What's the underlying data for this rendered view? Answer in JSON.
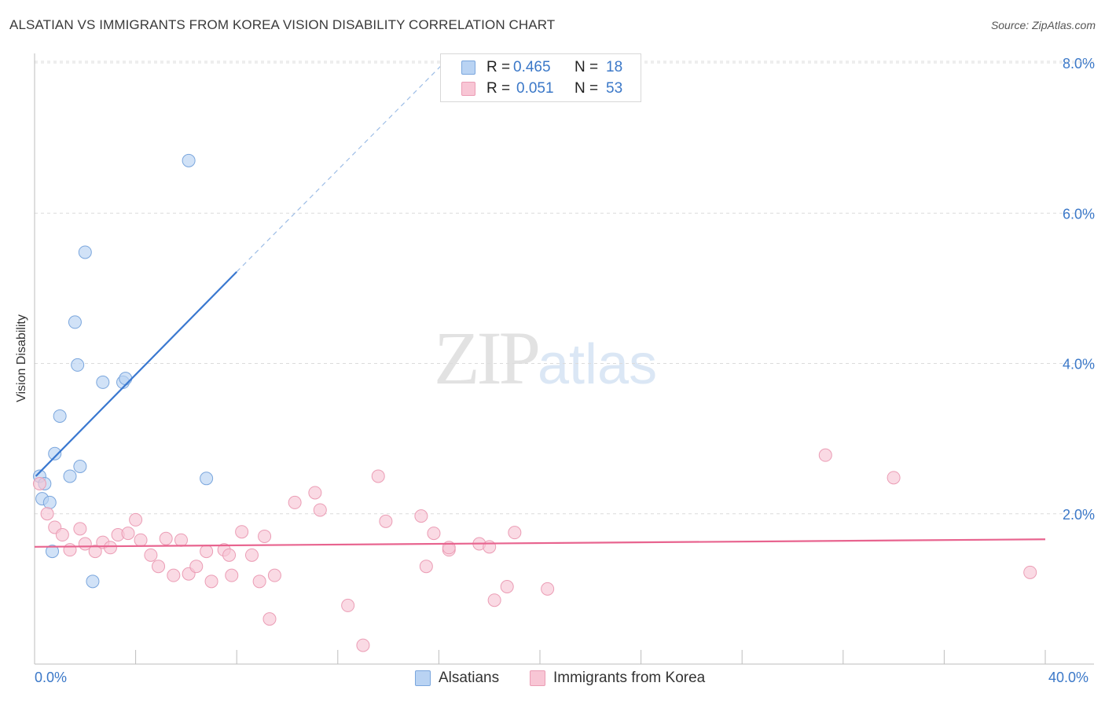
{
  "title": "ALSATIAN VS IMMIGRANTS FROM KOREA VISION DISABILITY CORRELATION CHART",
  "source": "Source: ZipAtlas.com",
  "watermark": {
    "zip": "ZIP",
    "atlas": "atlas"
  },
  "legend": {
    "r_label": "R =",
    "n_label": "N =",
    "rows": [
      {
        "r": "0.465",
        "n": "18"
      },
      {
        "r": "0.051",
        "n": "53"
      }
    ]
  },
  "bottom_legend": [
    "Alsatians",
    "Immigrants from Korea"
  ],
  "colors": {
    "blue_fill": "#b9d3f3",
    "blue_stroke": "#7aa6dd",
    "blue_line": "#3a78d0",
    "pink_fill": "#f8c6d5",
    "pink_stroke": "#eb9db5",
    "pink_line": "#e8648f",
    "axis_text": "#3b78c8"
  },
  "chart_data": {
    "type": "scatter",
    "title": "ALSATIAN VS IMMIGRANTS FROM KOREA VISION DISABILITY CORRELATION CHART",
    "xlabel": "",
    "ylabel": "Vision Disability",
    "xlim": [
      0,
      40
    ],
    "ylim": [
      0,
      8
    ],
    "x_tick_labels": [
      "0.0%",
      "40.0%"
    ],
    "y_ticks": [
      2,
      4,
      6,
      8
    ],
    "y_tick_labels": [
      "2.0%",
      "4.0%",
      "6.0%",
      "8.0%"
    ],
    "grid": true,
    "series": [
      {
        "name": "Alsatians",
        "r": 0.465,
        "n": 18,
        "points": [
          [
            0.2,
            2.5
          ],
          [
            0.3,
            2.2
          ],
          [
            0.4,
            2.4
          ],
          [
            0.6,
            2.15
          ],
          [
            0.7,
            1.5
          ],
          [
            0.8,
            2.8
          ],
          [
            1.0,
            3.3
          ],
          [
            1.4,
            2.5
          ],
          [
            1.6,
            4.55
          ],
          [
            1.7,
            3.98
          ],
          [
            1.8,
            2.63
          ],
          [
            2.0,
            5.48
          ],
          [
            2.3,
            1.1
          ],
          [
            2.7,
            3.75
          ],
          [
            3.5,
            3.75
          ],
          [
            3.6,
            3.8
          ],
          [
            6.1,
            6.7
          ],
          [
            6.8,
            2.47
          ]
        ],
        "trend": {
          "x0": 0.05,
          "y0": 2.5,
          "x1": 8.0,
          "y1": 5.22,
          "dash_x1": 16.2,
          "dash_y1": 8.0
        }
      },
      {
        "name": "Immigrants from Korea",
        "r": 0.051,
        "n": 53,
        "points": [
          [
            0.2,
            2.4
          ],
          [
            0.5,
            2.0
          ],
          [
            0.8,
            1.82
          ],
          [
            1.1,
            1.72
          ],
          [
            1.4,
            1.52
          ],
          [
            1.8,
            1.8
          ],
          [
            2.0,
            1.6
          ],
          [
            2.4,
            1.5
          ],
          [
            2.7,
            1.62
          ],
          [
            3.0,
            1.55
          ],
          [
            3.3,
            1.72
          ],
          [
            3.7,
            1.74
          ],
          [
            4.0,
            1.92
          ],
          [
            4.2,
            1.65
          ],
          [
            4.6,
            1.45
          ],
          [
            4.9,
            1.3
          ],
          [
            5.2,
            1.67
          ],
          [
            5.5,
            1.18
          ],
          [
            5.8,
            1.65
          ],
          [
            6.1,
            1.2
          ],
          [
            6.4,
            1.3
          ],
          [
            6.8,
            1.5
          ],
          [
            7.0,
            1.1
          ],
          [
            7.5,
            1.52
          ],
          [
            7.7,
            1.45
          ],
          [
            7.8,
            1.18
          ],
          [
            8.2,
            1.76
          ],
          [
            8.6,
            1.45
          ],
          [
            8.9,
            1.1
          ],
          [
            9.1,
            1.7
          ],
          [
            9.3,
            0.6
          ],
          [
            9.5,
            1.18
          ],
          [
            10.3,
            2.15
          ],
          [
            11.1,
            2.28
          ],
          [
            11.3,
            2.05
          ],
          [
            12.4,
            0.78
          ],
          [
            13.0,
            0.25
          ],
          [
            13.6,
            2.5
          ],
          [
            13.9,
            1.9
          ],
          [
            15.3,
            1.97
          ],
          [
            15.5,
            1.3
          ],
          [
            15.8,
            1.74
          ],
          [
            16.4,
            1.52
          ],
          [
            16.4,
            1.55
          ],
          [
            17.6,
            1.6
          ],
          [
            18.0,
            1.56
          ],
          [
            18.2,
            0.85
          ],
          [
            18.7,
            1.03
          ],
          [
            19.0,
            1.75
          ],
          [
            20.3,
            1.0
          ],
          [
            31.3,
            2.78
          ],
          [
            34.0,
            2.48
          ],
          [
            39.4,
            1.22
          ]
        ],
        "trend": {
          "x0": 0,
          "y0": 1.56,
          "x1": 40,
          "y1": 1.66
        }
      }
    ]
  }
}
